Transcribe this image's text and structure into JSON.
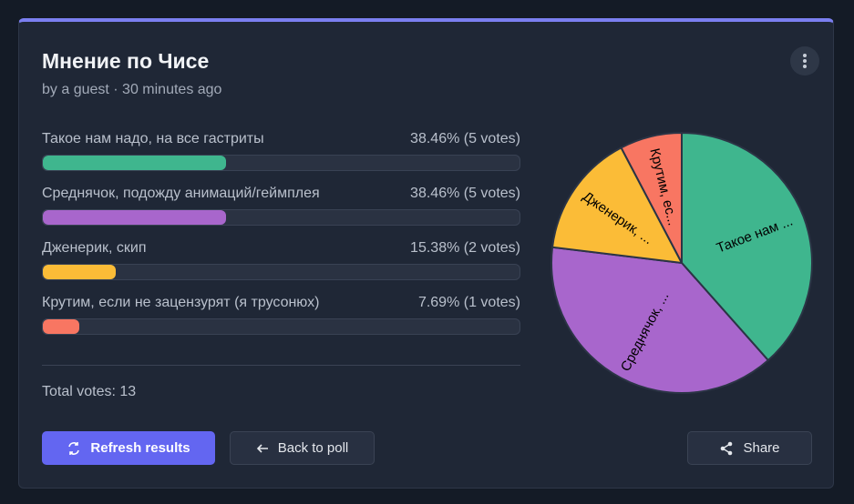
{
  "header": {
    "title": "Мнение по Чисе",
    "meta": "by a guest · 30 minutes ago"
  },
  "options": [
    {
      "label": "Такое нам надо, на все гастриты",
      "percent": 38.46,
      "result": "38.46% (5 votes)",
      "color": "#3fb68e"
    },
    {
      "label": "Среднячок, подожду анимаций/геймплея",
      "percent": 38.46,
      "result": "38.46% (5 votes)",
      "color": "#a866cc"
    },
    {
      "label": "Дженерик, скип",
      "percent": 15.38,
      "result": "15.38% (2 votes)",
      "color": "#fbbc37"
    },
    {
      "label": "Крутим, если не зацензурят (я трусонюх)",
      "percent": 7.69,
      "result": "7.69% (1 votes)",
      "color": "#f87662"
    }
  ],
  "total": "Total votes: 13",
  "buttons": {
    "refresh": "Refresh results",
    "back": "Back to poll",
    "share": "Share"
  },
  "chart_data": {
    "type": "pie",
    "categories": [
      "Такое нам ...",
      "Среднячок, ...",
      "Дженерик, ...",
      "Крутим, ес..."
    ],
    "values": [
      5,
      5,
      2,
      1
    ],
    "colors": [
      "#3fb68e",
      "#a866cc",
      "#fbbc37",
      "#f87662"
    ]
  }
}
